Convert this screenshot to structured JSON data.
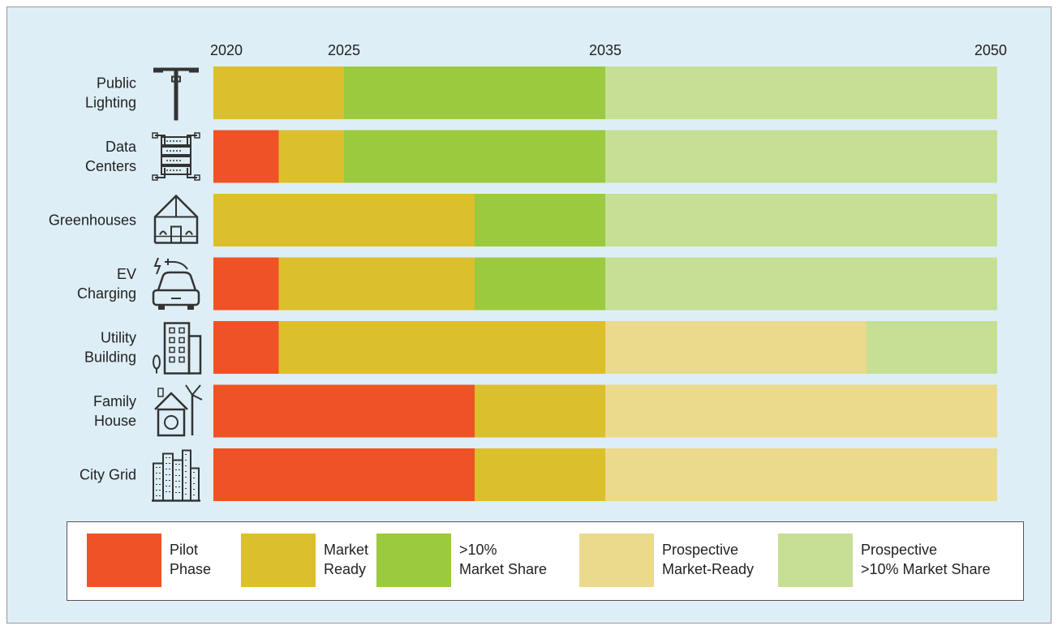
{
  "chart_data": {
    "type": "bar",
    "orientation": "horizontal",
    "stacked": true,
    "x_ticks": [
      2020,
      2025,
      2035,
      2050
    ],
    "xlim": [
      2020,
      2050
    ],
    "categories": [
      "Public\nLighting",
      "Data\nCenters",
      "Greenhouses",
      "EV\nCharging",
      "Utility\nBuilding",
      "Family\nHouse",
      "City Grid"
    ],
    "icons": [
      "street-lamp-icon",
      "server-rack-icon",
      "greenhouse-icon",
      "ev-charger-icon",
      "office-building-icon",
      "eco-house-icon",
      "city-skyline-icon"
    ],
    "phases": [
      {
        "key": "pilot",
        "label": "Pilot\nPhase",
        "color": "#ef5227"
      },
      {
        "key": "market_ready",
        "label": "Market\nReady",
        "color": "#dcbf2c"
      },
      {
        "key": "share10",
        "label": ">10%\nMarket Share",
        "color": "#9bca3e"
      },
      {
        "key": "prospective_ready",
        "label": "Prospective\nMarket-Ready",
        "color": "#ebd98c"
      },
      {
        "key": "prospective_share10",
        "label": "Prospective\n>10% Market Share",
        "color": "#c6df95"
      }
    ],
    "rows": [
      [
        {
          "phase": "market_ready",
          "start": 2020,
          "end": 2025
        },
        {
          "phase": "share10",
          "start": 2025,
          "end": 2035
        },
        {
          "phase": "prospective_share10",
          "start": 2035,
          "end": 2050
        }
      ],
      [
        {
          "phase": "pilot",
          "start": 2020,
          "end": 2022.5
        },
        {
          "phase": "market_ready",
          "start": 2022.5,
          "end": 2025
        },
        {
          "phase": "share10",
          "start": 2025,
          "end": 2035
        },
        {
          "phase": "prospective_share10",
          "start": 2035,
          "end": 2050
        }
      ],
      [
        {
          "phase": "market_ready",
          "start": 2020,
          "end": 2030
        },
        {
          "phase": "share10",
          "start": 2030,
          "end": 2035
        },
        {
          "phase": "prospective_share10",
          "start": 2035,
          "end": 2050
        }
      ],
      [
        {
          "phase": "pilot",
          "start": 2020,
          "end": 2022.5
        },
        {
          "phase": "market_ready",
          "start": 2022.5,
          "end": 2030
        },
        {
          "phase": "share10",
          "start": 2030,
          "end": 2035
        },
        {
          "phase": "prospective_share10",
          "start": 2035,
          "end": 2050
        }
      ],
      [
        {
          "phase": "pilot",
          "start": 2020,
          "end": 2022.5
        },
        {
          "phase": "market_ready",
          "start": 2022.5,
          "end": 2035
        },
        {
          "phase": "prospective_ready",
          "start": 2035,
          "end": 2045
        },
        {
          "phase": "prospective_share10",
          "start": 2045,
          "end": 2050
        }
      ],
      [
        {
          "phase": "pilot",
          "start": 2020,
          "end": 2030
        },
        {
          "phase": "market_ready",
          "start": 2030,
          "end": 2035
        },
        {
          "phase": "prospective_ready",
          "start": 2035,
          "end": 2050
        }
      ],
      [
        {
          "phase": "pilot",
          "start": 2020,
          "end": 2030
        },
        {
          "phase": "market_ready",
          "start": 2030,
          "end": 2035
        },
        {
          "phase": "prospective_ready",
          "start": 2035,
          "end": 2050
        }
      ]
    ]
  }
}
